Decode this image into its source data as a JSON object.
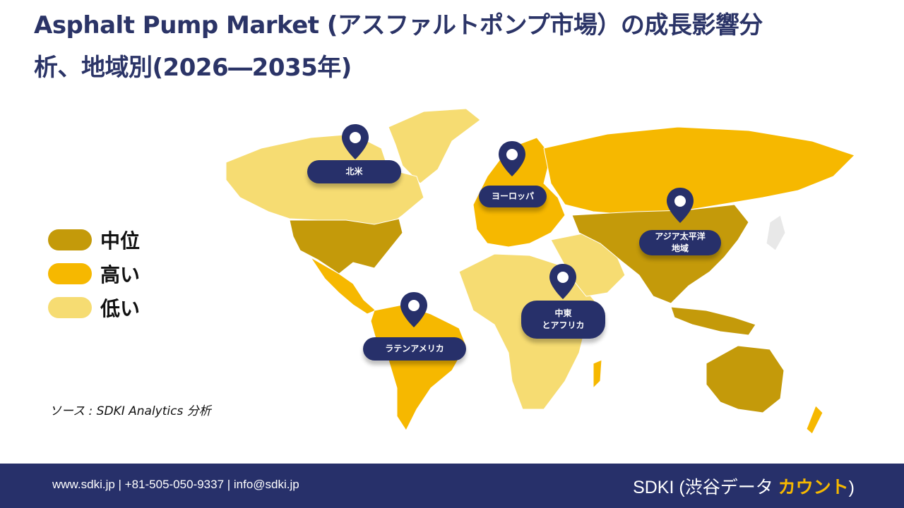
{
  "title": {
    "line1": "Asphalt Pump Market (アスファルトポンプ市場）の成長影響分",
    "line2": "析、地域別(2026―2035年)"
  },
  "legend": [
    {
      "label": "中位",
      "color": "#c49a0a"
    },
    {
      "label": "高い",
      "color": "#f6b800"
    },
    {
      "label": "低い",
      "color": "#f6dc72"
    }
  ],
  "regions": {
    "north_america": "北米",
    "europe": "ヨーロッパ",
    "asia_pacific_1": "アジア太平洋",
    "asia_pacific_2": "地域",
    "middle_east_1": "中東",
    "middle_east_2": "とアフリカ",
    "latin_america": "ラテンアメリカ"
  },
  "source": "ソース : SDKI Analytics 分析",
  "footer": {
    "contact": "www.sdki.jp  | +81-505-050-9337 | info@sdki.jp",
    "brand_prefix": "SDKI (渋谷データ ",
    "brand_accent": "カウント",
    "brand_suffix": ")"
  },
  "colors": {
    "medium": "#c49a0a",
    "high": "#f6b800",
    "low": "#f6dc72",
    "navy": "#27306a"
  }
}
